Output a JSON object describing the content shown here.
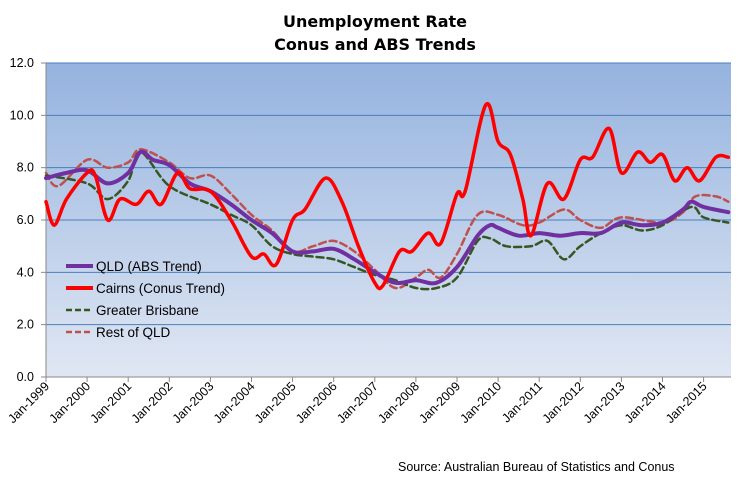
{
  "chart_data": {
    "type": "line",
    "title": "Unemployment Rate",
    "subtitle": "Conus and ABS Trends",
    "source": "Source: Australian Bureau of Statistics and Conus",
    "xlabel": "",
    "ylabel": "",
    "ylim": [
      0,
      12
    ],
    "xlim": [
      1999.0,
      2015.63
    ],
    "yticks": [
      "0.0",
      "2.0",
      "4.0",
      "6.0",
      "8.0",
      "10.0",
      "12.0"
    ],
    "xticks": [
      "Jan-1999",
      "Jan-2000",
      "Jan-2001",
      "Jan-2002",
      "Jan-2003",
      "Jan-2004",
      "Jan-2005",
      "Jan-2006",
      "Jan-2007",
      "Jan-2008",
      "Jan-2009",
      "Jan-2010",
      "Jan-2011",
      "Jan-2012",
      "Jan-2013",
      "Jan-2014",
      "Jan-2015"
    ],
    "grid": true,
    "legend_position": "left-bottom",
    "series": [
      {
        "name": "QLD (ABS Trend)",
        "color": "#7030a0",
        "style": "solid",
        "x": [
          1999.0,
          1999.5,
          2000.0,
          2000.5,
          2001.0,
          2001.3,
          2001.6,
          2002.0,
          2002.5,
          2003.0,
          2003.5,
          2004.0,
          2004.5,
          2005.0,
          2005.5,
          2006.0,
          2006.5,
          2007.0,
          2007.5,
          2008.0,
          2008.5,
          2009.0,
          2009.5,
          2009.8,
          2010.0,
          2010.5,
          2011.0,
          2011.5,
          2012.0,
          2012.5,
          2013.0,
          2013.5,
          2014.0,
          2014.5,
          2014.7,
          2015.0,
          2015.6
        ],
        "y": [
          7.6,
          7.8,
          7.9,
          7.4,
          7.8,
          8.6,
          8.3,
          8.1,
          7.4,
          7.1,
          6.6,
          6.0,
          5.5,
          4.8,
          4.8,
          4.9,
          4.5,
          4.0,
          3.6,
          3.7,
          3.6,
          4.2,
          5.4,
          5.8,
          5.7,
          5.4,
          5.5,
          5.4,
          5.5,
          5.5,
          5.9,
          5.8,
          5.9,
          6.4,
          6.7,
          6.5,
          6.3
        ]
      },
      {
        "name": "Cairns (Conus Trend)",
        "color": "#ff0000",
        "style": "solid",
        "x": [
          1999.0,
          1999.2,
          1999.5,
          2000.0,
          2000.2,
          2000.5,
          2000.8,
          2001.2,
          2001.5,
          2001.8,
          2002.2,
          2002.5,
          2003.0,
          2003.5,
          2004.0,
          2004.3,
          2004.6,
          2005.0,
          2005.3,
          2005.8,
          2006.2,
          2006.6,
          2007.0,
          2007.2,
          2007.6,
          2007.9,
          2008.3,
          2008.6,
          2009.0,
          2009.2,
          2009.7,
          2010.0,
          2010.3,
          2010.6,
          2010.8,
          2011.2,
          2011.6,
          2012.0,
          2012.3,
          2012.7,
          2013.0,
          2013.4,
          2013.7,
          2014.0,
          2014.3,
          2014.6,
          2014.9,
          2015.3,
          2015.6
        ],
        "y": [
          6.7,
          5.8,
          6.8,
          7.8,
          7.7,
          6.0,
          6.8,
          6.6,
          7.1,
          6.6,
          7.8,
          7.2,
          7.1,
          6.0,
          4.6,
          4.7,
          4.3,
          6.0,
          6.4,
          7.6,
          6.7,
          5.0,
          3.6,
          3.5,
          4.8,
          4.8,
          5.5,
          5.1,
          7.0,
          7.1,
          10.4,
          9.0,
          8.5,
          6.8,
          5.4,
          7.4,
          6.8,
          8.3,
          8.4,
          9.5,
          7.8,
          8.6,
          8.2,
          8.5,
          7.5,
          8.0,
          7.5,
          8.4,
          8.4
        ]
      },
      {
        "name": "Greater Brisbane",
        "color": "#375623",
        "style": "dashed",
        "x": [
          1999.0,
          2000.0,
          2000.5,
          2001.0,
          2001.3,
          2002.0,
          2003.0,
          2003.5,
          2004.0,
          2004.5,
          2005.0,
          2005.5,
          2006.0,
          2006.5,
          2007.0,
          2007.5,
          2008.0,
          2008.5,
          2009.0,
          2009.5,
          2009.8,
          2010.2,
          2010.8,
          2011.2,
          2011.6,
          2012.0,
          2012.5,
          2013.0,
          2013.5,
          2014.0,
          2014.7,
          2015.0,
          2015.6
        ],
        "y": [
          7.7,
          7.4,
          6.8,
          7.5,
          8.6,
          7.3,
          6.6,
          6.2,
          5.8,
          5.0,
          4.7,
          4.6,
          4.5,
          4.2,
          3.9,
          3.7,
          3.4,
          3.4,
          3.8,
          5.2,
          5.3,
          5.0,
          5.0,
          5.2,
          4.5,
          5.0,
          5.5,
          5.8,
          5.6,
          5.8,
          6.5,
          6.1,
          5.9
        ]
      },
      {
        "name": "Rest of QLD",
        "color": "#c0504d",
        "style": "dashed",
        "x": [
          1999.0,
          1999.3,
          2000.0,
          2000.5,
          2001.0,
          2001.3,
          2002.0,
          2002.5,
          2003.0,
          2003.5,
          2004.0,
          2004.5,
          2005.0,
          2005.5,
          2006.0,
          2006.5,
          2007.0,
          2007.5,
          2008.0,
          2008.3,
          2008.6,
          2009.0,
          2009.5,
          2010.0,
          2010.6,
          2011.0,
          2011.6,
          2012.0,
          2012.5,
          2013.0,
          2014.0,
          2014.5,
          2014.8,
          2015.3,
          2015.6
        ],
        "y": [
          7.8,
          7.3,
          8.3,
          8.0,
          8.2,
          8.7,
          8.2,
          7.6,
          7.7,
          7.0,
          6.2,
          5.6,
          4.8,
          5.0,
          5.2,
          4.8,
          4.1,
          3.4,
          3.8,
          4.1,
          3.8,
          4.7,
          6.2,
          6.2,
          5.8,
          5.9,
          6.4,
          6.0,
          5.7,
          6.1,
          5.9,
          6.3,
          6.9,
          6.9,
          6.7
        ]
      }
    ]
  }
}
